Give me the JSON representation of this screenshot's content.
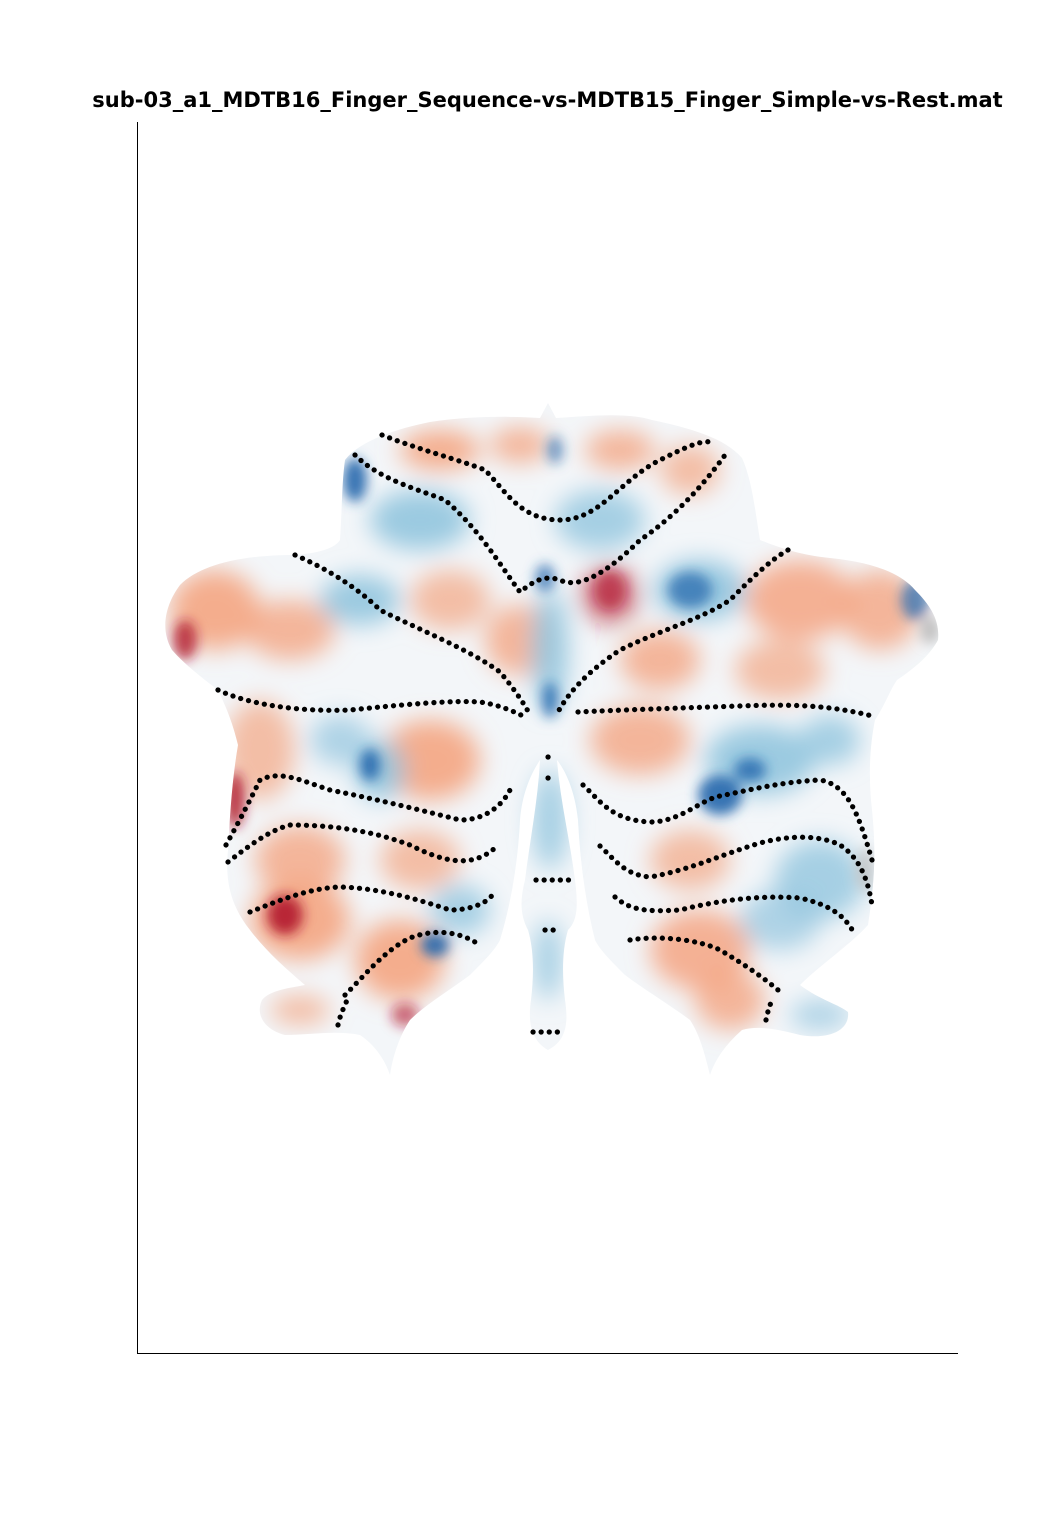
{
  "figure": {
    "title": "sub-03_a1_MDTB16_Finger_Sequence-vs-MDTB15_Finger_Simple-vs-Rest.mat",
    "colormap": {
      "negative": "#2166ac",
      "mid_negative": "#92c5de",
      "neutral": "#f7f7f7",
      "mid_positive": "#f4a582",
      "positive": "#b2182b",
      "missing": "#bdbdbd"
    },
    "boundary_style": "dotted",
    "boundary_color": "#000000",
    "axes": {
      "left_spine": true,
      "bottom_spine": true,
      "ticks": false
    }
  }
}
